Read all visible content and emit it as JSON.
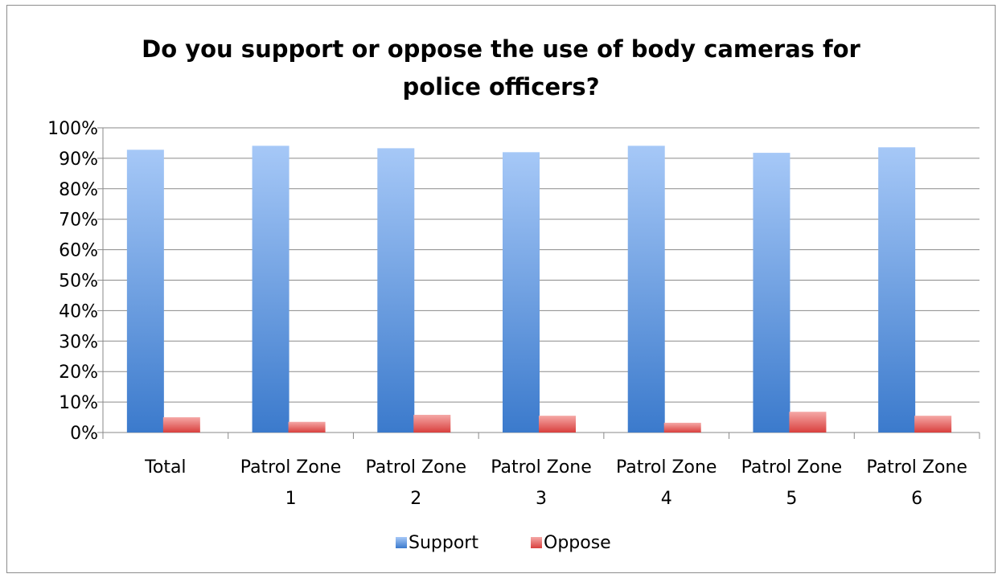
{
  "chart_data": {
    "type": "bar",
    "title": "Do you support or oppose the use of body cameras for police officers?",
    "xlabel": "",
    "ylabel": "",
    "categories": [
      [
        "Total"
      ],
      [
        "Patrol Zone",
        "1"
      ],
      [
        "Patrol Zone",
        "2"
      ],
      [
        "Patrol Zone",
        "3"
      ],
      [
        "Patrol Zone",
        "4"
      ],
      [
        "Patrol Zone",
        "5"
      ],
      [
        "Patrol Zone",
        "6"
      ]
    ],
    "ylim": [
      0,
      100
    ],
    "yticks": [
      0,
      10,
      20,
      30,
      40,
      50,
      60,
      70,
      80,
      90,
      100
    ],
    "ytick_format": "{v}%",
    "grid": true,
    "legend_position": "bottom",
    "series": [
      {
        "name": "Support",
        "color": "#4a86d4",
        "values": [
          92.8,
          94.1,
          93.3,
          92.0,
          94.1,
          91.8,
          93.6
        ]
      },
      {
        "name": "Oppose",
        "color": "#e05a5a",
        "values": [
          5.0,
          3.5,
          5.8,
          5.5,
          3.2,
          6.8,
          5.5
        ]
      }
    ]
  }
}
